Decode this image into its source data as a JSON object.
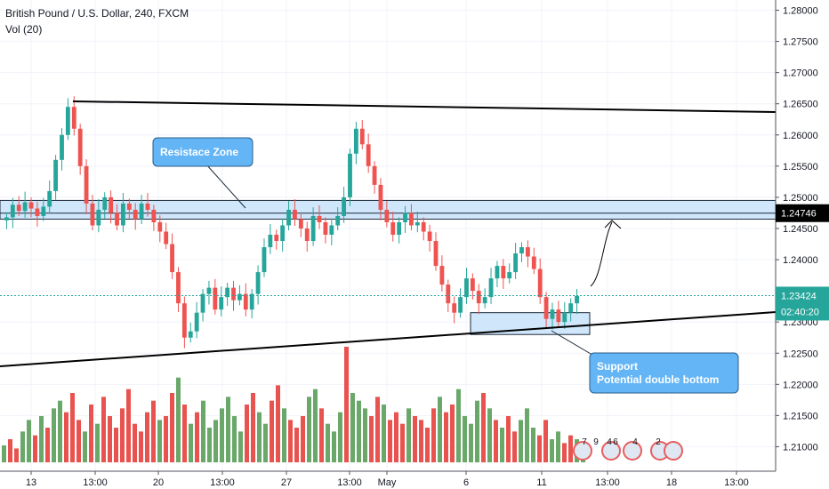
{
  "header": {
    "symbol_title": "British Pound / U.S. Dollar, 240, FXCM",
    "volume_label": "Vol (20)"
  },
  "colors": {
    "up": "#26a69a",
    "down": "#ef5350",
    "vol_up": "#6aa86a",
    "vol_down": "#e8534f",
    "zone_fill": "#cfe6fb",
    "zone_stroke": "#1e2a3a",
    "callout_fill": "#64b5f6",
    "price_tag": "#26a69a",
    "resistance_tag": "#000000",
    "trendline": "#000000"
  },
  "icons": [
    "economic-event-flag-icon"
  ],
  "chart_data": {
    "type": "candlestick",
    "title": "British Pound / U.S. Dollar, 240, FXCM",
    "price_axis": {
      "ticks": [
        "1.28000",
        "1.27500",
        "1.27000",
        "1.26500",
        "1.26000",
        "1.25500",
        "1.25000",
        "1.24500",
        "1.24000",
        "1.23500",
        "1.23000",
        "1.22500",
        "1.22000",
        "1.21500",
        "1.21000"
      ],
      "ylim": [
        1.2075,
        1.2805
      ]
    },
    "time_axis": {
      "ticks": [
        "13",
        "13:00",
        "20",
        "13:00",
        "27",
        "13:00",
        "May",
        "6",
        "11",
        "13:00",
        "18",
        "13:00"
      ]
    },
    "price_tags": {
      "last_price": "1.23424",
      "countdown": "02:40:20",
      "resistance_level": "1.24746"
    },
    "close_path": [
      1.2468,
      1.2488,
      1.2478,
      1.2492,
      1.2482,
      1.247,
      1.2485,
      1.251,
      1.256,
      1.26,
      1.2645,
      1.261,
      1.255,
      1.249,
      1.2455,
      1.248,
      1.25,
      1.2475,
      1.2455,
      1.249,
      1.248,
      1.2465,
      1.249,
      1.248,
      1.246,
      1.2445,
      1.2425,
      1.238,
      1.233,
      1.2275,
      1.2285,
      1.2315,
      1.2345,
      1.2355,
      1.232,
      1.234,
      1.2355,
      1.2335,
      1.2345,
      1.232,
      1.2345,
      1.238,
      1.242,
      1.244,
      1.243,
      1.2455,
      1.248,
      1.2465,
      1.245,
      1.243,
      1.247,
      1.246,
      1.244,
      1.2455,
      1.247,
      1.25,
      1.257,
      1.261,
      1.2585,
      1.255,
      1.252,
      1.248,
      1.246,
      1.244,
      1.246,
      1.2475,
      1.2455,
      1.246,
      1.2445,
      1.243,
      1.239,
      1.236,
      1.233,
      1.2315,
      1.234,
      1.237,
      1.235,
      1.233,
      1.234,
      1.237,
      1.239,
      1.237,
      1.238,
      1.241,
      1.242,
      1.2405,
      1.2385,
      1.234,
      1.2305,
      1.232,
      1.23,
      1.2315,
      1.233,
      1.2342
    ],
    "volume_path": [
      22,
      30,
      18,
      40,
      55,
      35,
      60,
      45,
      70,
      80,
      65,
      90,
      55,
      40,
      75,
      50,
      85,
      60,
      45,
      70,
      95,
      50,
      40,
      65,
      80,
      55,
      60,
      90,
      110,
      75,
      50,
      65,
      80,
      45,
      55,
      70,
      85,
      60,
      40,
      75,
      90,
      65,
      50,
      80,
      100,
      70,
      55,
      45,
      60,
      85,
      95,
      70,
      50,
      40,
      65,
      150,
      90,
      80,
      70,
      60,
      85,
      75,
      55,
      65,
      50,
      70,
      60,
      55,
      45,
      70,
      85,
      65,
      75,
      95,
      60,
      50,
      80,
      90,
      70,
      55,
      45,
      60,
      40,
      55,
      70,
      45,
      35,
      55,
      30,
      40,
      25,
      35,
      30,
      25
    ],
    "annotations": [
      {
        "kind": "callout",
        "text": "Resistace Zone"
      },
      {
        "kind": "callout",
        "lines": [
          "Support",
          "Potential double bottom"
        ]
      }
    ],
    "event_flags": [
      {
        "value": "7"
      },
      {
        "value": "9"
      },
      {
        "value": "4"
      },
      {
        "value": "6"
      },
      {
        "value": "4"
      },
      {
        "value": "2"
      }
    ],
    "grid": true,
    "legend_position": "top-left"
  }
}
